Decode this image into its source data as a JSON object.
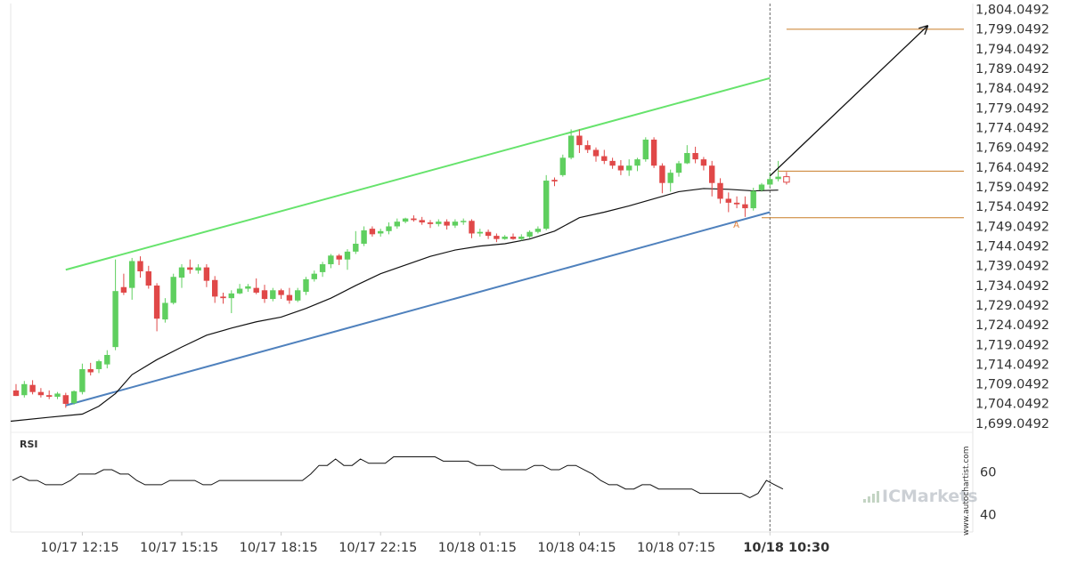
{
  "chart_data": [
    {
      "type": "candlestick",
      "y_axis": {
        "min": 1697.0,
        "max": 1805.5,
        "tick_labels": [
          "1,804.0492",
          "1,799.0492",
          "1,794.0492",
          "1,789.0492",
          "1,784.0492",
          "1,779.0492",
          "1,774.0492",
          "1,769.0492",
          "1,764.0492",
          "1,759.0492",
          "1,754.0492",
          "1,749.0492",
          "1,744.0492",
          "1,739.0492",
          "1,734.0492",
          "1,729.0492",
          "1,724.0492",
          "1,719.0492",
          "1,714.0492",
          "1,709.0492",
          "1,704.0492",
          "1,699.0492"
        ],
        "tick_values": [
          1804.0492,
          1799.0492,
          1794.0492,
          1789.0492,
          1784.0492,
          1779.0492,
          1774.0492,
          1769.0492,
          1764.0492,
          1759.0492,
          1754.0492,
          1749.0492,
          1744.0492,
          1739.0492,
          1734.0492,
          1729.0492,
          1724.0492,
          1719.0492,
          1714.0492,
          1709.0492,
          1704.0492,
          1699.0492
        ]
      },
      "x_axis": {
        "tick_labels": [
          "10/17 12:15",
          "10/17 15:15",
          "10/17 18:15",
          "10/17 22:15",
          "10/18 01:15",
          "10/18 04:15",
          "10/18 07:15",
          "10/18 10:30"
        ],
        "tick_index": [
          8,
          20,
          32,
          44,
          56,
          68,
          80,
          91
        ],
        "highlight_label": "10/18 10:30"
      },
      "current_index": 91,
      "candles": [
        {
          "o": 1707.4,
          "h": 1709.0,
          "l": 1706.0,
          "c": 1706.0
        },
        {
          "o": 1706.2,
          "h": 1709.8,
          "l": 1705.6,
          "c": 1709.0
        },
        {
          "o": 1708.8,
          "h": 1710.0,
          "l": 1706.4,
          "c": 1707.0
        },
        {
          "o": 1707.0,
          "h": 1708.0,
          "l": 1705.6,
          "c": 1706.2
        },
        {
          "o": 1706.2,
          "h": 1707.4,
          "l": 1705.2,
          "c": 1705.8
        },
        {
          "o": 1705.8,
          "h": 1707.0,
          "l": 1705.2,
          "c": 1706.6
        },
        {
          "o": 1706.2,
          "h": 1706.8,
          "l": 1703.0,
          "c": 1704.0
        },
        {
          "o": 1704.2,
          "h": 1707.4,
          "l": 1703.8,
          "c": 1707.2
        },
        {
          "o": 1707.0,
          "h": 1714.2,
          "l": 1706.4,
          "c": 1712.8
        },
        {
          "o": 1712.8,
          "h": 1714.4,
          "l": 1711.2,
          "c": 1712.0
        },
        {
          "o": 1712.8,
          "h": 1715.2,
          "l": 1711.8,
          "c": 1714.8
        },
        {
          "o": 1714.0,
          "h": 1717.6,
          "l": 1713.0,
          "c": 1716.4
        },
        {
          "o": 1718.4,
          "h": 1740.6,
          "l": 1717.6,
          "c": 1732.6
        },
        {
          "o": 1733.6,
          "h": 1737.0,
          "l": 1731.6,
          "c": 1732.2
        },
        {
          "o": 1733.4,
          "h": 1741.0,
          "l": 1730.4,
          "c": 1740.2
        },
        {
          "o": 1740.2,
          "h": 1741.4,
          "l": 1736.0,
          "c": 1737.6
        },
        {
          "o": 1737.6,
          "h": 1739.0,
          "l": 1733.2,
          "c": 1734.0
        },
        {
          "o": 1734.0,
          "h": 1734.6,
          "l": 1722.4,
          "c": 1725.6
        },
        {
          "o": 1725.4,
          "h": 1730.8,
          "l": 1724.6,
          "c": 1729.6
        },
        {
          "o": 1729.6,
          "h": 1737.0,
          "l": 1729.2,
          "c": 1736.2
        },
        {
          "o": 1736.0,
          "h": 1739.4,
          "l": 1733.4,
          "c": 1738.6
        },
        {
          "o": 1738.6,
          "h": 1740.6,
          "l": 1737.0,
          "c": 1738.0
        },
        {
          "o": 1737.8,
          "h": 1739.4,
          "l": 1737.0,
          "c": 1738.6
        },
        {
          "o": 1738.6,
          "h": 1739.4,
          "l": 1733.6,
          "c": 1735.2
        },
        {
          "o": 1735.4,
          "h": 1736.4,
          "l": 1729.6,
          "c": 1731.2
        },
        {
          "o": 1731.2,
          "h": 1732.2,
          "l": 1729.4,
          "c": 1730.8
        },
        {
          "o": 1730.8,
          "h": 1732.8,
          "l": 1727.0,
          "c": 1732.0
        },
        {
          "o": 1732.0,
          "h": 1734.4,
          "l": 1731.8,
          "c": 1733.2
        },
        {
          "o": 1733.2,
          "h": 1734.4,
          "l": 1732.4,
          "c": 1733.8
        },
        {
          "o": 1733.4,
          "h": 1735.8,
          "l": 1731.8,
          "c": 1732.2
        },
        {
          "o": 1732.8,
          "h": 1734.2,
          "l": 1729.6,
          "c": 1730.6
        },
        {
          "o": 1730.6,
          "h": 1733.4,
          "l": 1730.0,
          "c": 1732.8
        },
        {
          "o": 1732.8,
          "h": 1733.2,
          "l": 1730.6,
          "c": 1731.6
        },
        {
          "o": 1731.6,
          "h": 1733.4,
          "l": 1729.4,
          "c": 1730.2
        },
        {
          "o": 1730.2,
          "h": 1733.4,
          "l": 1729.8,
          "c": 1732.8
        },
        {
          "o": 1732.4,
          "h": 1736.2,
          "l": 1731.6,
          "c": 1735.6
        },
        {
          "o": 1735.6,
          "h": 1737.8,
          "l": 1735.0,
          "c": 1737.0
        },
        {
          "o": 1737.4,
          "h": 1740.0,
          "l": 1736.2,
          "c": 1739.4
        },
        {
          "o": 1739.4,
          "h": 1742.0,
          "l": 1738.4,
          "c": 1741.6
        },
        {
          "o": 1741.6,
          "h": 1742.0,
          "l": 1739.2,
          "c": 1740.6
        },
        {
          "o": 1740.6,
          "h": 1743.2,
          "l": 1738.0,
          "c": 1742.6
        },
        {
          "o": 1742.6,
          "h": 1747.8,
          "l": 1742.0,
          "c": 1744.6
        },
        {
          "o": 1744.6,
          "h": 1749.0,
          "l": 1744.0,
          "c": 1748.0
        },
        {
          "o": 1748.4,
          "h": 1749.0,
          "l": 1746.4,
          "c": 1747.0
        },
        {
          "o": 1747.2,
          "h": 1748.4,
          "l": 1746.4,
          "c": 1747.8
        },
        {
          "o": 1747.8,
          "h": 1750.0,
          "l": 1747.0,
          "c": 1749.0
        },
        {
          "o": 1749.0,
          "h": 1751.0,
          "l": 1748.4,
          "c": 1750.2
        },
        {
          "o": 1750.2,
          "h": 1751.2,
          "l": 1749.8,
          "c": 1751.0
        },
        {
          "o": 1751.0,
          "h": 1751.8,
          "l": 1750.2,
          "c": 1750.6
        },
        {
          "o": 1750.6,
          "h": 1751.4,
          "l": 1749.4,
          "c": 1750.0
        },
        {
          "o": 1750.0,
          "h": 1750.6,
          "l": 1748.6,
          "c": 1749.6
        },
        {
          "o": 1749.6,
          "h": 1750.8,
          "l": 1749.0,
          "c": 1750.2
        },
        {
          "o": 1750.2,
          "h": 1750.8,
          "l": 1748.2,
          "c": 1749.2
        },
        {
          "o": 1749.2,
          "h": 1750.8,
          "l": 1748.6,
          "c": 1750.2
        },
        {
          "o": 1750.2,
          "h": 1751.0,
          "l": 1749.4,
          "c": 1750.4
        },
        {
          "o": 1750.4,
          "h": 1750.8,
          "l": 1746.0,
          "c": 1747.2
        },
        {
          "o": 1747.2,
          "h": 1748.4,
          "l": 1746.4,
          "c": 1747.6
        },
        {
          "o": 1747.6,
          "h": 1748.2,
          "l": 1745.8,
          "c": 1746.6
        },
        {
          "o": 1746.6,
          "h": 1747.2,
          "l": 1745.0,
          "c": 1745.8
        },
        {
          "o": 1745.8,
          "h": 1746.8,
          "l": 1745.6,
          "c": 1746.4
        },
        {
          "o": 1746.4,
          "h": 1747.2,
          "l": 1745.6,
          "c": 1745.8
        },
        {
          "o": 1745.8,
          "h": 1747.0,
          "l": 1745.4,
          "c": 1746.4
        },
        {
          "o": 1746.4,
          "h": 1748.0,
          "l": 1746.0,
          "c": 1747.6
        },
        {
          "o": 1747.6,
          "h": 1749.0,
          "l": 1747.2,
          "c": 1748.4
        },
        {
          "o": 1748.4,
          "h": 1762.0,
          "l": 1748.0,
          "c": 1760.6
        },
        {
          "o": 1760.8,
          "h": 1761.4,
          "l": 1759.2,
          "c": 1760.4
        },
        {
          "o": 1762.0,
          "h": 1767.2,
          "l": 1761.6,
          "c": 1766.4
        },
        {
          "o": 1766.4,
          "h": 1773.6,
          "l": 1766.0,
          "c": 1772.0
        },
        {
          "o": 1772.0,
          "h": 1773.6,
          "l": 1767.6,
          "c": 1769.6
        },
        {
          "o": 1769.6,
          "h": 1770.8,
          "l": 1767.6,
          "c": 1768.4
        },
        {
          "o": 1768.4,
          "h": 1769.0,
          "l": 1765.4,
          "c": 1766.8
        },
        {
          "o": 1766.8,
          "h": 1768.4,
          "l": 1764.8,
          "c": 1765.6
        },
        {
          "o": 1765.6,
          "h": 1766.4,
          "l": 1763.6,
          "c": 1764.4
        },
        {
          "o": 1764.4,
          "h": 1765.8,
          "l": 1762.0,
          "c": 1763.2
        },
        {
          "o": 1763.2,
          "h": 1766.0,
          "l": 1761.8,
          "c": 1764.4
        },
        {
          "o": 1764.4,
          "h": 1766.4,
          "l": 1763.0,
          "c": 1766.0
        },
        {
          "o": 1766.0,
          "h": 1771.6,
          "l": 1765.4,
          "c": 1771.0
        },
        {
          "o": 1771.0,
          "h": 1771.6,
          "l": 1763.8,
          "c": 1764.4
        },
        {
          "o": 1764.4,
          "h": 1765.0,
          "l": 1757.4,
          "c": 1760.0
        },
        {
          "o": 1760.0,
          "h": 1763.4,
          "l": 1757.8,
          "c": 1762.6
        },
        {
          "o": 1762.6,
          "h": 1765.6,
          "l": 1761.6,
          "c": 1765.0
        },
        {
          "o": 1765.0,
          "h": 1769.6,
          "l": 1764.8,
          "c": 1767.6
        },
        {
          "o": 1767.6,
          "h": 1769.2,
          "l": 1765.0,
          "c": 1766.0
        },
        {
          "o": 1766.0,
          "h": 1766.6,
          "l": 1763.2,
          "c": 1764.4
        },
        {
          "o": 1764.4,
          "h": 1765.6,
          "l": 1756.6,
          "c": 1760.0
        },
        {
          "o": 1760.0,
          "h": 1761.2,
          "l": 1754.8,
          "c": 1756.0
        },
        {
          "o": 1756.0,
          "h": 1757.6,
          "l": 1752.6,
          "c": 1755.0
        },
        {
          "o": 1755.0,
          "h": 1756.6,
          "l": 1753.6,
          "c": 1754.6
        },
        {
          "o": 1754.6,
          "h": 1756.6,
          "l": 1751.4,
          "c": 1753.6
        },
        {
          "o": 1753.6,
          "h": 1758.8,
          "l": 1753.0,
          "c": 1758.0
        },
        {
          "o": 1758.2,
          "h": 1760.0,
          "l": 1757.8,
          "c": 1759.6
        },
        {
          "o": 1759.6,
          "h": 1762.6,
          "l": 1759.0,
          "c": 1761.0
        },
        {
          "o": 1761.0,
          "h": 1765.6,
          "l": 1760.4,
          "c": 1761.6
        },
        {
          "o": 1761.6,
          "h": 1762.8,
          "l": 1759.6,
          "c": 1760.2,
          "hollow": true
        }
      ],
      "moving_average": [
        {
          "i": 0,
          "v": 1699.6
        },
        {
          "i": 4,
          "v": 1700.6
        },
        {
          "i": 8,
          "v": 1701.4
        },
        {
          "i": 10,
          "v": 1703.4
        },
        {
          "i": 12,
          "v": 1706.6
        },
        {
          "i": 14,
          "v": 1711.4
        },
        {
          "i": 17,
          "v": 1715.2
        },
        {
          "i": 20,
          "v": 1718.4
        },
        {
          "i": 23,
          "v": 1721.4
        },
        {
          "i": 26,
          "v": 1723.2
        },
        {
          "i": 29,
          "v": 1724.8
        },
        {
          "i": 32,
          "v": 1726.0
        },
        {
          "i": 35,
          "v": 1728.2
        },
        {
          "i": 38,
          "v": 1730.8
        },
        {
          "i": 41,
          "v": 1734.0
        },
        {
          "i": 44,
          "v": 1737.0
        },
        {
          "i": 47,
          "v": 1739.2
        },
        {
          "i": 50,
          "v": 1741.4
        },
        {
          "i": 53,
          "v": 1743.0
        },
        {
          "i": 56,
          "v": 1744.0
        },
        {
          "i": 59,
          "v": 1744.6
        },
        {
          "i": 62,
          "v": 1745.8
        },
        {
          "i": 65,
          "v": 1747.8
        },
        {
          "i": 68,
          "v": 1751.2
        },
        {
          "i": 71,
          "v": 1752.6
        },
        {
          "i": 74,
          "v": 1754.2
        },
        {
          "i": 77,
          "v": 1756.0
        },
        {
          "i": 80,
          "v": 1757.8
        },
        {
          "i": 83,
          "v": 1758.6
        },
        {
          "i": 86,
          "v": 1758.4
        },
        {
          "i": 89,
          "v": 1758.0
        },
        {
          "i": 92,
          "v": 1758.2
        }
      ],
      "channel_upper": {
        "x1": 6,
        "y1": 1738.0,
        "x2": 91,
        "y2": 1786.6,
        "color": "#66e36c"
      },
      "channel_lower": {
        "x1": 6,
        "y1": 1703.6,
        "x2": 91,
        "y2": 1752.6,
        "color": "#4f81bd"
      },
      "levels": [
        {
          "x1": 93,
          "y": 1799.0,
          "color": "#c97d27"
        },
        {
          "x1": 92,
          "y": 1763.0,
          "color": "#c97d27"
        },
        {
          "x1": 90,
          "y": 1751.2,
          "color": "#c97d27"
        }
      ],
      "arrow": {
        "x1": 91,
        "y1": 1761.8,
        "x2": 110,
        "y2": 1799.8
      },
      "point_label": {
        "text": "A",
        "x": 87,
        "y": 1749.8,
        "color": "#e0803d"
      }
    },
    {
      "type": "line",
      "title": "RSI",
      "y_axis": {
        "min": 32,
        "max": 78,
        "tick_labels": [
          "60",
          "40"
        ],
        "tick_values": [
          60,
          40
        ]
      },
      "values": [
        56,
        58,
        56,
        56,
        54,
        54,
        54,
        56,
        59,
        59,
        59,
        61,
        61,
        59,
        59,
        56,
        54,
        54,
        54,
        56,
        56,
        56,
        56,
        54,
        54,
        56,
        56,
        56,
        56,
        56,
        56,
        56,
        56,
        56,
        56,
        56,
        59,
        63,
        63,
        66,
        63,
        63,
        66,
        64,
        64,
        64,
        67,
        67,
        67,
        67,
        67,
        67,
        65,
        65,
        65,
        65,
        63,
        63,
        63,
        61,
        61,
        61,
        61,
        63,
        63,
        61,
        61,
        63,
        63,
        61,
        59,
        56,
        54,
        54,
        52,
        52,
        54,
        54,
        52,
        52,
        52,
        52,
        52,
        50,
        50,
        50,
        50,
        50,
        50,
        48,
        50,
        56,
        54,
        52
      ]
    }
  ],
  "watermark": {
    "brand": "ICMarkets",
    "vertical_text": "www.autochartist.com"
  }
}
